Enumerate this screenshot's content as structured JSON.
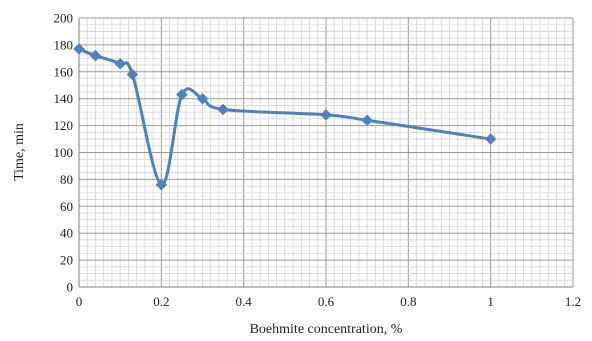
{
  "chart_data": {
    "type": "line",
    "title": "",
    "xlabel": "Boehmite concentration, %",
    "ylabel": "Time, min",
    "xlim": [
      0,
      1.2
    ],
    "ylim": [
      0,
      200
    ],
    "x_ticks": [
      "0",
      "0.2",
      "0.4",
      "0.6",
      "0.8",
      "1",
      "1.2"
    ],
    "y_ticks": [
      "0",
      "20",
      "40",
      "60",
      "80",
      "100",
      "120",
      "140",
      "160",
      "180",
      "200"
    ],
    "grid": true,
    "smooth": true,
    "marker": "diamond",
    "line_color": "#4f81bd",
    "series": [
      {
        "x": [
          0,
          0.04,
          0.1,
          0.13,
          0.2,
          0.25,
          0.3,
          0.35,
          0.6,
          0.7,
          1.0
        ],
        "y": [
          177,
          172,
          166,
          158,
          76,
          143,
          140,
          132,
          128,
          124,
          110
        ]
      }
    ]
  }
}
